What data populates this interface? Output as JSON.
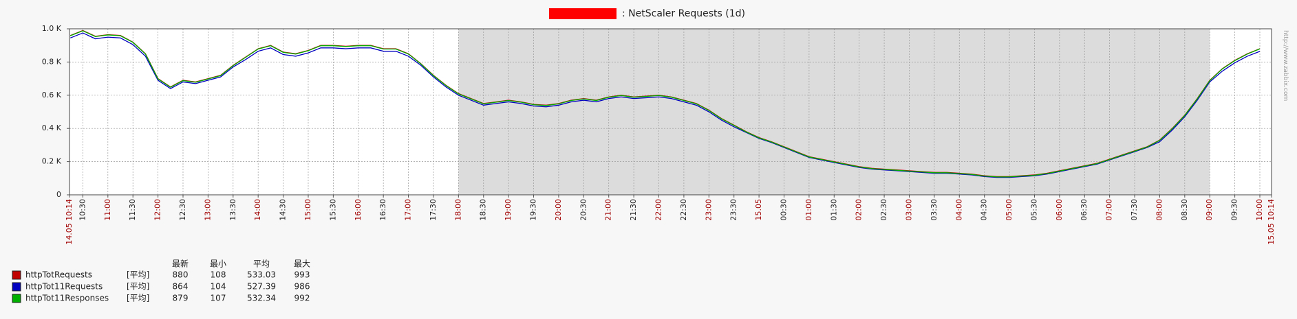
{
  "chart_data": {
    "type": "line",
    "title": ": NetScaler Requests (1d)",
    "watermark": "http://www.zabbix.com",
    "xlim": [
      "14.05 10:14",
      "15.05 10:14"
    ],
    "xticks": [
      "14.05 10:14",
      "10:30",
      "11:00",
      "11:30",
      "12:00",
      "12:30",
      "13:00",
      "13:30",
      "14:00",
      "14:30",
      "15:00",
      "15:30",
      "16:00",
      "16:30",
      "17:00",
      "17:30",
      "18:00",
      "18:30",
      "19:00",
      "19:30",
      "20:00",
      "20:30",
      "21:00",
      "21:30",
      "22:00",
      "22:30",
      "23:00",
      "23:30",
      "15.05",
      "00:30",
      "01:00",
      "01:30",
      "02:00",
      "02:30",
      "03:00",
      "03:30",
      "04:00",
      "04:30",
      "05:00",
      "05:30",
      "06:00",
      "06:30",
      "07:00",
      "07:30",
      "08:00",
      "08:30",
      "09:00",
      "09:30",
      "10:00",
      "15.05 10:14"
    ],
    "ylim": [
      0,
      1000
    ],
    "yticks": [
      0,
      {
        "value": 200,
        "label": "0.2 K"
      },
      {
        "value": 400,
        "label": "0.4 K"
      },
      {
        "value": 600,
        "label": "0.6 K"
      },
      {
        "value": 800,
        "label": "0.8 K"
      },
      {
        "value": 1000,
        "label": "1.0 K"
      }
    ],
    "grid": true,
    "night": {
      "from": "18:00",
      "to": "09:00",
      "color": "#dcdcdc"
    },
    "x": [
      "10:15",
      "10:30",
      "10:45",
      "11:00",
      "11:15",
      "11:30",
      "11:45",
      "12:00",
      "12:15",
      "12:30",
      "12:45",
      "13:00",
      "13:15",
      "13:30",
      "13:45",
      "14:00",
      "14:15",
      "14:30",
      "14:45",
      "15:00",
      "15:15",
      "15:30",
      "15:45",
      "16:00",
      "16:15",
      "16:30",
      "16:45",
      "17:00",
      "17:15",
      "17:30",
      "17:45",
      "18:00",
      "18:15",
      "18:30",
      "18:45",
      "19:00",
      "19:15",
      "19:30",
      "19:45",
      "20:00",
      "20:15",
      "20:30",
      "20:45",
      "21:00",
      "21:15",
      "21:30",
      "21:45",
      "22:00",
      "22:15",
      "22:30",
      "22:45",
      "23:00",
      "23:15",
      "23:30",
      "23:45",
      "00:00",
      "00:15",
      "00:30",
      "00:45",
      "01:00",
      "01:15",
      "01:30",
      "01:45",
      "02:00",
      "02:15",
      "02:30",
      "02:45",
      "03:00",
      "03:15",
      "03:30",
      "03:45",
      "04:00",
      "04:15",
      "04:30",
      "04:45",
      "05:00",
      "05:15",
      "05:30",
      "05:45",
      "06:00",
      "06:15",
      "06:30",
      "06:45",
      "07:00",
      "07:15",
      "07:30",
      "07:45",
      "08:00",
      "08:15",
      "08:30",
      "08:45",
      "09:00",
      "09:15",
      "09:30",
      "09:45",
      "10:00"
    ],
    "stat_headers": [
      "最新",
      "最小",
      "平均",
      "最大"
    ],
    "series": [
      {
        "name": "httpTotRequests",
        "color": "#c00000",
        "func": "[平均]",
        "stats": [
          880,
          108,
          533.03,
          993
        ],
        "values": [
          960,
          990,
          955,
          965,
          960,
          920,
          850,
          700,
          650,
          690,
          680,
          700,
          720,
          780,
          830,
          880,
          900,
          860,
          850,
          870,
          900,
          900,
          895,
          900,
          900,
          880,
          880,
          850,
          790,
          720,
          660,
          610,
          580,
          550,
          560,
          570,
          560,
          545,
          540,
          550,
          570,
          580,
          570,
          590,
          600,
          590,
          595,
          600,
          590,
          570,
          550,
          510,
          460,
          420,
          380,
          345,
          320,
          290,
          260,
          230,
          215,
          200,
          185,
          170,
          160,
          155,
          150,
          145,
          140,
          135,
          135,
          130,
          125,
          115,
          110,
          110,
          115,
          120,
          130,
          145,
          160,
          175,
          190,
          215,
          240,
          265,
          290,
          330,
          400,
          480,
          580,
          690,
          760,
          810,
          850,
          880
        ]
      },
      {
        "name": "httpTot11Requests",
        "color": "#0000c0",
        "func": "[平均]",
        "stats": [
          864,
          104,
          527.39,
          986
        ],
        "values": [
          945,
          975,
          940,
          950,
          945,
          905,
          835,
          690,
          640,
          680,
          670,
          690,
          710,
          770,
          815,
          865,
          885,
          845,
          835,
          855,
          885,
          885,
          880,
          885,
          885,
          865,
          865,
          835,
          780,
          710,
          650,
          600,
          570,
          540,
          550,
          560,
          550,
          535,
          530,
          540,
          560,
          570,
          560,
          580,
          590,
          580,
          585,
          590,
          580,
          560,
          540,
          500,
          450,
          410,
          375,
          340,
          315,
          285,
          255,
          225,
          210,
          195,
          180,
          165,
          155,
          150,
          145,
          140,
          135,
          130,
          130,
          125,
          120,
          110,
          105,
          105,
          110,
          115,
          125,
          140,
          155,
          170,
          185,
          210,
          235,
          260,
          285,
          320,
          390,
          470,
          570,
          680,
          745,
          795,
          835,
          864
        ]
      },
      {
        "name": "httpTot11Responses",
        "color": "#00b000",
        "func": "[平均]",
        "stats": [
          879,
          107,
          532.34,
          992
        ],
        "values": [
          958,
          988,
          953,
          963,
          958,
          918,
          848,
          698,
          648,
          688,
          678,
          698,
          718,
          778,
          828,
          878,
          898,
          858,
          848,
          868,
          898,
          898,
          893,
          898,
          898,
          878,
          878,
          848,
          788,
          718,
          658,
          608,
          578,
          548,
          558,
          568,
          558,
          543,
          538,
          548,
          568,
          578,
          568,
          588,
          598,
          588,
          593,
          598,
          588,
          568,
          548,
          508,
          458,
          418,
          378,
          343,
          318,
          288,
          258,
          228,
          213,
          198,
          183,
          168,
          158,
          153,
          148,
          143,
          138,
          133,
          133,
          128,
          123,
          113,
          108,
          108,
          113,
          118,
          128,
          143,
          158,
          173,
          188,
          213,
          238,
          263,
          288,
          328,
          398,
          478,
          578,
          688,
          758,
          808,
          848,
          879
        ]
      }
    ]
  }
}
